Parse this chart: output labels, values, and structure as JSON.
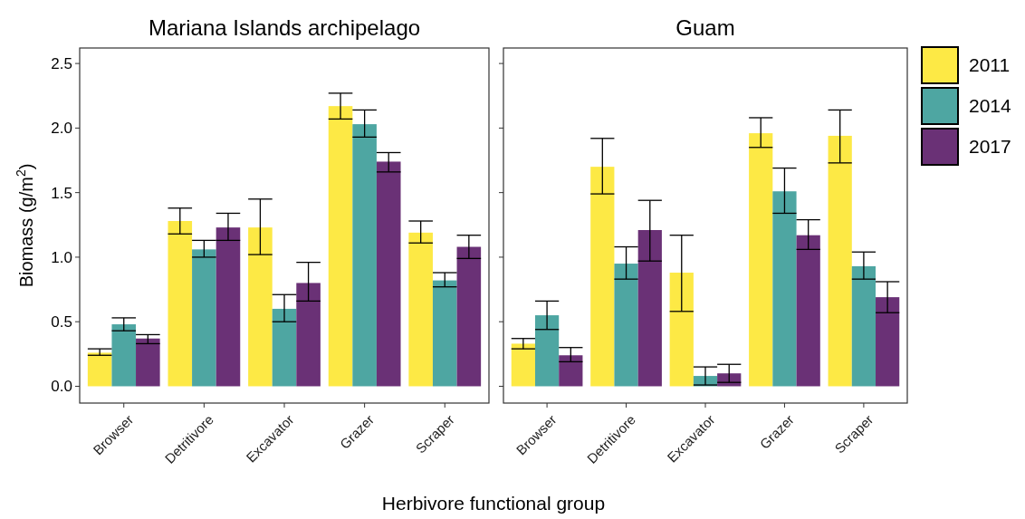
{
  "chart_data": [
    {
      "type": "bar",
      "title": "Mariana Islands archipelago",
      "ylabel": "Biomass (g/m$^{2}$)",
      "xlabel": "Herbivore functional group",
      "categories": [
        "Browser",
        "Detritivore",
        "Excavator",
        "Grazer",
        "Scraper"
      ],
      "ylim": [
        -0.13,
        2.62
      ],
      "yticks": [
        {
          "value": 0,
          "label": "0.0"
        },
        0.5,
        {
          "value": 1,
          "label": "1.0"
        },
        1.5,
        {
          "value": 2,
          "label": "2.0"
        },
        2.5
      ],
      "grid": false,
      "legend": "right",
      "series": [
        {
          "name": "2011",
          "color": "#fde945",
          "values": [
            0.26,
            1.28,
            1.23,
            2.17,
            1.19
          ],
          "errors": [
            [
              0.24,
              0.29
            ],
            [
              1.18,
              1.38
            ],
            [
              1.02,
              1.45
            ],
            [
              2.07,
              2.27
            ],
            [
              1.11,
              1.28
            ]
          ]
        },
        {
          "name": "2014",
          "color": "#4ea6a2",
          "values": [
            0.48,
            1.06,
            0.6,
            2.03,
            0.82
          ],
          "errors": [
            [
              0.43,
              0.53
            ],
            [
              1.0,
              1.13
            ],
            [
              0.5,
              0.71
            ],
            [
              1.93,
              2.14
            ],
            [
              0.77,
              0.88
            ]
          ]
        },
        {
          "name": "2017",
          "color": "#6a3176",
          "values": [
            0.37,
            1.23,
            0.8,
            1.74,
            1.08
          ],
          "errors": [
            [
              0.33,
              0.4
            ],
            [
              1.13,
              1.34
            ],
            [
              0.66,
              0.96
            ],
            [
              1.66,
              1.81
            ],
            [
              0.99,
              1.17
            ]
          ]
        }
      ]
    },
    {
      "type": "bar",
      "title": "Guam",
      "categories": [
        "Browser",
        "Detritivore",
        "Excavator",
        "Grazer",
        "Scraper"
      ],
      "ylim": [
        -0.13,
        2.62
      ],
      "yticks": [
        {
          "value": 0,
          "label": null
        },
        {
          "value": 0.5,
          "label": null
        },
        {
          "value": 1,
          "label": null
        },
        {
          "value": 1.5,
          "label": null
        },
        {
          "value": 2,
          "label": null
        },
        {
          "value": 2.5,
          "label": null
        }
      ],
      "tick_labels": "x",
      "grid": false,
      "series": [
        {
          "color": "#fde945",
          "values": [
            0.33,
            1.7,
            0.88,
            1.96,
            1.94
          ],
          "errors": [
            [
              0.29,
              0.37
            ],
            [
              1.49,
              1.92
            ],
            [
              0.58,
              1.17
            ],
            [
              1.85,
              2.08
            ],
            [
              1.73,
              2.14
            ]
          ]
        },
        {
          "color": "#4ea6a2",
          "values": [
            0.55,
            0.95,
            0.08,
            1.51,
            0.93
          ],
          "errors": [
            [
              0.44,
              0.66
            ],
            [
              0.83,
              1.08
            ],
            [
              0.01,
              0.15
            ],
            [
              1.34,
              1.69
            ],
            [
              0.83,
              1.04
            ]
          ]
        },
        {
          "color": "#6a3176",
          "values": [
            0.24,
            1.21,
            0.1,
            1.17,
            0.69
          ],
          "errors": [
            [
              0.19,
              0.3
            ],
            [
              0.97,
              1.44
            ],
            [
              0.03,
              0.17
            ],
            [
              1.06,
              1.29
            ],
            [
              0.57,
              0.81
            ]
          ]
        }
      ]
    }
  ]
}
